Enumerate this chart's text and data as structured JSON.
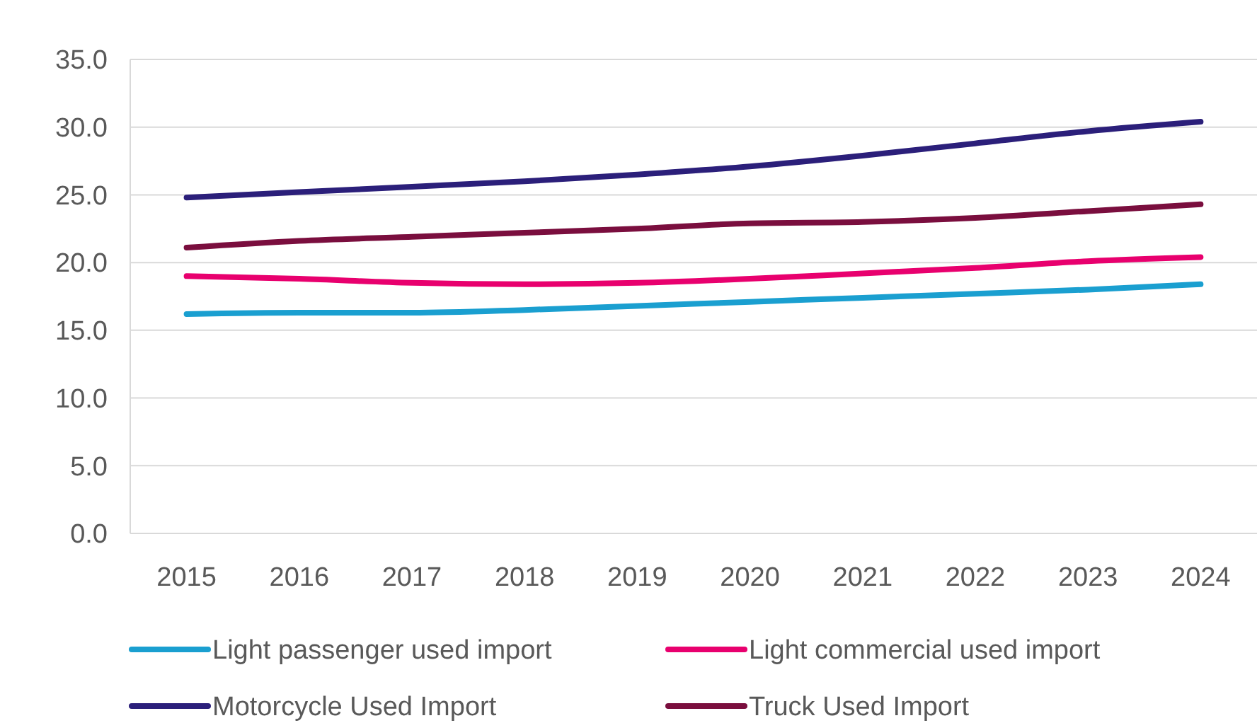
{
  "chart_data": {
    "type": "line",
    "categories": [
      "2015",
      "2016",
      "2017",
      "2018",
      "2019",
      "2020",
      "2021",
      "2022",
      "2023",
      "2024"
    ],
    "series": [
      {
        "name": "Light passenger used import",
        "color": "#1a9fd0",
        "values": [
          16.2,
          16.3,
          16.3,
          16.5,
          16.8,
          17.1,
          17.4,
          17.7,
          18.0,
          18.4
        ]
      },
      {
        "name": "Light commercial used import",
        "color": "#e8006e",
        "values": [
          19.0,
          18.8,
          18.5,
          18.4,
          18.5,
          18.8,
          19.2,
          19.6,
          20.1,
          20.4
        ]
      },
      {
        "name": "Motorcycle Used Import",
        "color": "#2b1f7a",
        "values": [
          24.8,
          25.2,
          25.6,
          26.0,
          26.5,
          27.1,
          27.9,
          28.8,
          29.7,
          30.4
        ]
      },
      {
        "name": "Truck Used Import",
        "color": "#7a0e3e",
        "values": [
          21.1,
          21.6,
          21.9,
          22.2,
          22.5,
          22.9,
          23.0,
          23.3,
          23.8,
          24.3
        ]
      }
    ],
    "ylim": [
      0,
      35
    ],
    "yticks": [
      {
        "value": 0,
        "label": "0.0"
      },
      {
        "value": 5,
        "label": "5.0"
      },
      {
        "value": 10,
        "label": "10.0"
      },
      {
        "value": 15,
        "label": "15.0"
      },
      {
        "value": 20,
        "label": "20.0"
      },
      {
        "value": 25,
        "label": "25.0"
      },
      {
        "value": 30,
        "label": "30.0"
      },
      {
        "value": 35,
        "label": "35.0"
      }
    ],
    "grid": "y",
    "legend": "bottom",
    "marker": "none",
    "line_style": "solid"
  }
}
